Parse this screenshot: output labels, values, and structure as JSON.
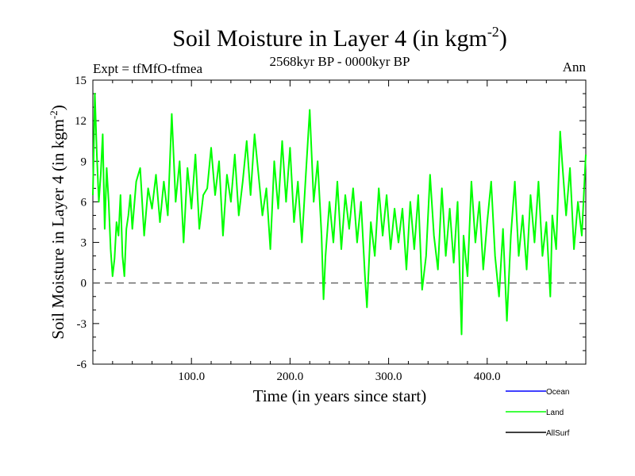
{
  "chart_data": {
    "type": "line",
    "title": "Soil Moisture in Layer 4 (in kgm",
    "title_sup": "-2",
    "title_close": ")",
    "subtitle_left": "Expt = tfMfO-tfmea",
    "subtitle_center": "2568kyr BP - 0000kyr BP",
    "subtitle_right": "Ann",
    "xlabel": "Time (in years since start)",
    "ylabel": "Soil Moisture in Layer 4 (in kgm",
    "ylabel_sup": "-2",
    "ylabel_close": ")",
    "xlim": [
      0,
      500
    ],
    "ylim": [
      -6,
      15
    ],
    "xticks": [
      100,
      200,
      300,
      400
    ],
    "xtick_labels": [
      "100.0",
      "200.0",
      "300.0",
      "400.0"
    ],
    "yticks": [
      -6,
      -3,
      0,
      3,
      6,
      9,
      12,
      15
    ],
    "ytick_labels": [
      "-6",
      "-3",
      "0",
      "3",
      "6",
      "9",
      "12",
      "15"
    ],
    "reference_line_y": 0,
    "legend": [
      {
        "name": "Ocean",
        "color": "#0000ff"
      },
      {
        "name": "Land",
        "color": "#00ff00"
      },
      {
        "name": "AllSurf",
        "color": "#000000"
      }
    ],
    "series": [
      {
        "name": "Land",
        "color": "#00ff00",
        "x": [
          0,
          2,
          4,
          6,
          8,
          10,
          12,
          14,
          16,
          18,
          20,
          22,
          24,
          26,
          28,
          30,
          32,
          34,
          36,
          38,
          40,
          44,
          48,
          52,
          56,
          60,
          64,
          68,
          72,
          76,
          80,
          84,
          88,
          92,
          96,
          100,
          104,
          108,
          112,
          116,
          120,
          124,
          128,
          132,
          136,
          140,
          144,
          148,
          152,
          156,
          160,
          164,
          168,
          172,
          176,
          180,
          184,
          188,
          192,
          196,
          200,
          204,
          208,
          212,
          216,
          220,
          224,
          228,
          232,
          234,
          236,
          240,
          244,
          248,
          252,
          256,
          260,
          264,
          268,
          272,
          276,
          278,
          282,
          286,
          290,
          294,
          298,
          302,
          306,
          310,
          314,
          318,
          322,
          326,
          330,
          334,
          338,
          342,
          346,
          350,
          354,
          358,
          362,
          366,
          370,
          374,
          376,
          380,
          384,
          388,
          392,
          396,
          400,
          404,
          408,
          412,
          416,
          420,
          424,
          428,
          432,
          436,
          440,
          444,
          448,
          452,
          456,
          460,
          464,
          466,
          470,
          474,
          476,
          480,
          484,
          488,
          492,
          496,
          500
        ],
        "values": [
          6.5,
          14.0,
          9.5,
          6.0,
          8.0,
          11.0,
          4.0,
          8.5,
          6.0,
          2.5,
          0.5,
          1.8,
          4.5,
          3.5,
          6.5,
          2.0,
          0.5,
          4.0,
          5.0,
          6.5,
          4.0,
          7.5,
          8.5,
          3.5,
          7.0,
          5.5,
          8.0,
          4.5,
          7.5,
          5.0,
          12.5,
          6.0,
          9.0,
          3.0,
          8.5,
          5.5,
          9.5,
          4.0,
          6.5,
          7.0,
          10.0,
          6.5,
          9.0,
          3.5,
          8.0,
          6.0,
          9.5,
          5.0,
          7.5,
          10.5,
          6.5,
          11.0,
          8.0,
          5.0,
          7.0,
          2.5,
          9.0,
          5.5,
          10.5,
          6.0,
          10.0,
          4.5,
          7.5,
          3.0,
          8.0,
          12.8,
          6.0,
          9.0,
          3.5,
          -1.2,
          2.0,
          6.0,
          3.0,
          7.5,
          2.5,
          6.5,
          4.0,
          7.0,
          3.0,
          6.0,
          0.5,
          -1.8,
          4.5,
          2.0,
          7.0,
          3.5,
          6.5,
          2.5,
          5.5,
          3.0,
          5.5,
          1.0,
          6.0,
          2.5,
          6.5,
          -0.5,
          2.0,
          8.0,
          3.5,
          1.0,
          7.0,
          2.0,
          5.5,
          1.5,
          6.0,
          -3.8,
          3.5,
          0.5,
          7.5,
          3.0,
          6.0,
          1.0,
          4.5,
          7.5,
          2.0,
          -1.0,
          4.0,
          -2.8,
          3.5,
          7.5,
          2.0,
          5.0,
          1.0,
          6.5,
          3.0,
          7.5,
          2.0,
          4.5,
          -1.0,
          5.0,
          2.5,
          11.2,
          9.0,
          5.0,
          8.5,
          2.5,
          6.0,
          3.5,
          9.5
        ]
      }
    ]
  }
}
